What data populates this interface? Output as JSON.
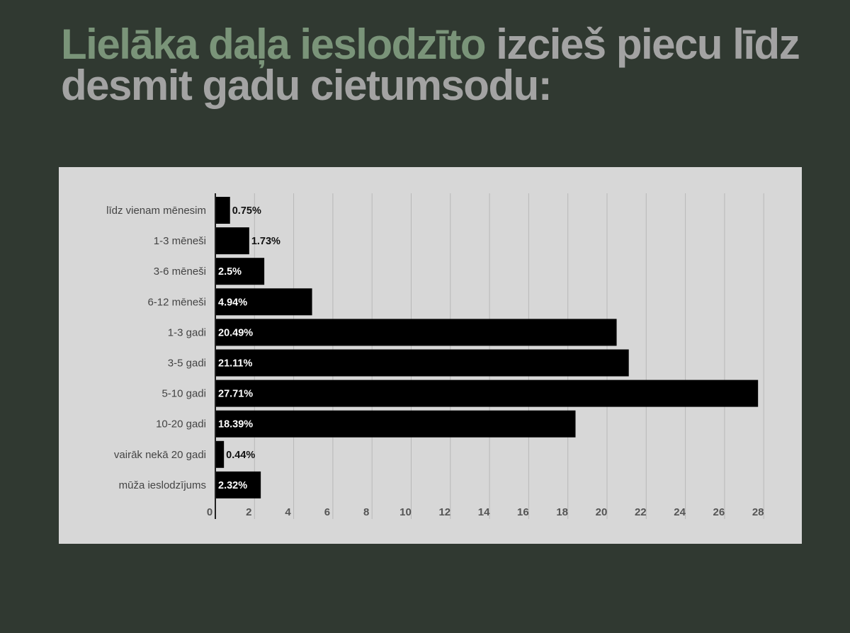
{
  "header": {
    "highlight": "Lielāka daļa ieslodzīto",
    "rest": " izcieš piecu līdz desmit gadu cietumsodu:"
  },
  "colors": {
    "background": "#303931",
    "panel": "#d7d7d7",
    "bar": "#000000",
    "highlight_text": "#7a9479",
    "muted_text": "#a3a3a3",
    "grid": "#b8b8b8"
  },
  "chart_data": {
    "type": "bar",
    "orientation": "horizontal",
    "categories": [
      "līdz vienam mēnesim",
      "1-3 mēneši",
      "3-6 mēneši",
      "6-12 mēneši",
      "1-3 gadi",
      "3-5 gadi",
      "5-10 gadi",
      "10-20 gadi",
      "vairāk nekā 20 gadi",
      "mūža ieslodzījums"
    ],
    "values": [
      0.75,
      1.73,
      2.5,
      4.94,
      20.49,
      21.11,
      27.71,
      18.39,
      0.44,
      2.32
    ],
    "value_labels": [
      "0.75%",
      "1.73%",
      "2.5%",
      "4.94%",
      "20.49%",
      "21.11%",
      "27.71%",
      "18.39%",
      "0.44%",
      "2.32%"
    ],
    "x_ticks": [
      0,
      2,
      4,
      6,
      8,
      10,
      12,
      14,
      16,
      18,
      20,
      22,
      24,
      26,
      28
    ],
    "xlim": [
      0,
      28
    ],
    "grid": true,
    "legend": "none",
    "title": "",
    "xlabel": "",
    "ylabel": ""
  }
}
